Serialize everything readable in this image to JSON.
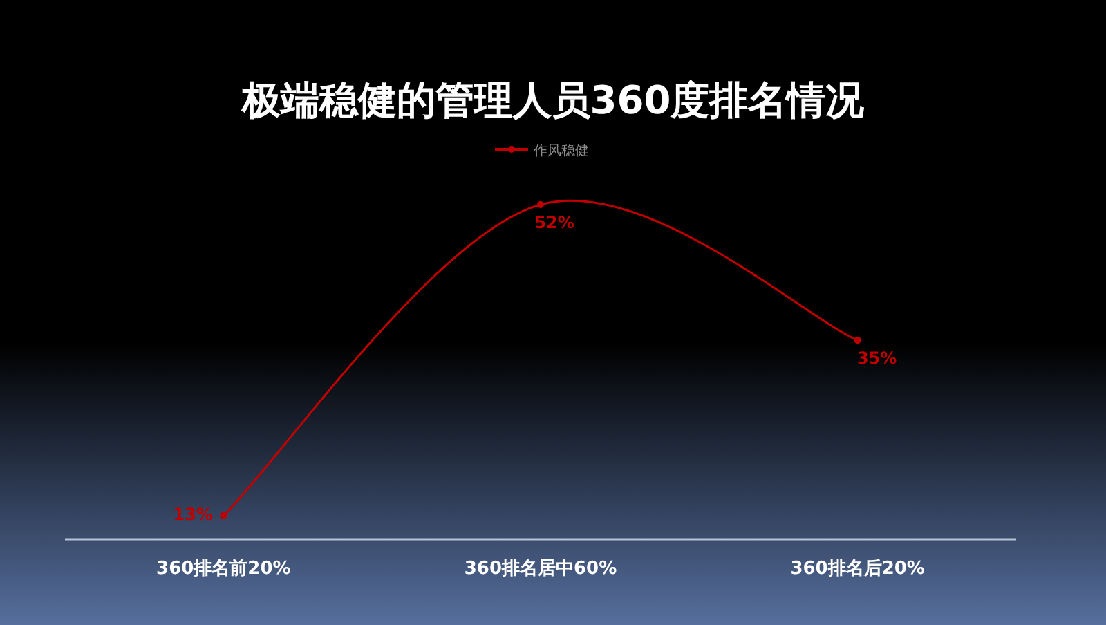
{
  "chart_data": {
    "type": "line",
    "title": "极端稳健的管理人员360度排名情况",
    "categories": [
      "360排名前20%",
      "360排名居中60%",
      "360排名后20%"
    ],
    "series": [
      {
        "name": "作风稳健",
        "color": "#c00000",
        "values": [
          13,
          52,
          35
        ],
        "value_labels": [
          "13%",
          "52%",
          "35%"
        ]
      }
    ],
    "legend": "top",
    "marker": "circle",
    "line_style": "solid",
    "grid": false
  }
}
